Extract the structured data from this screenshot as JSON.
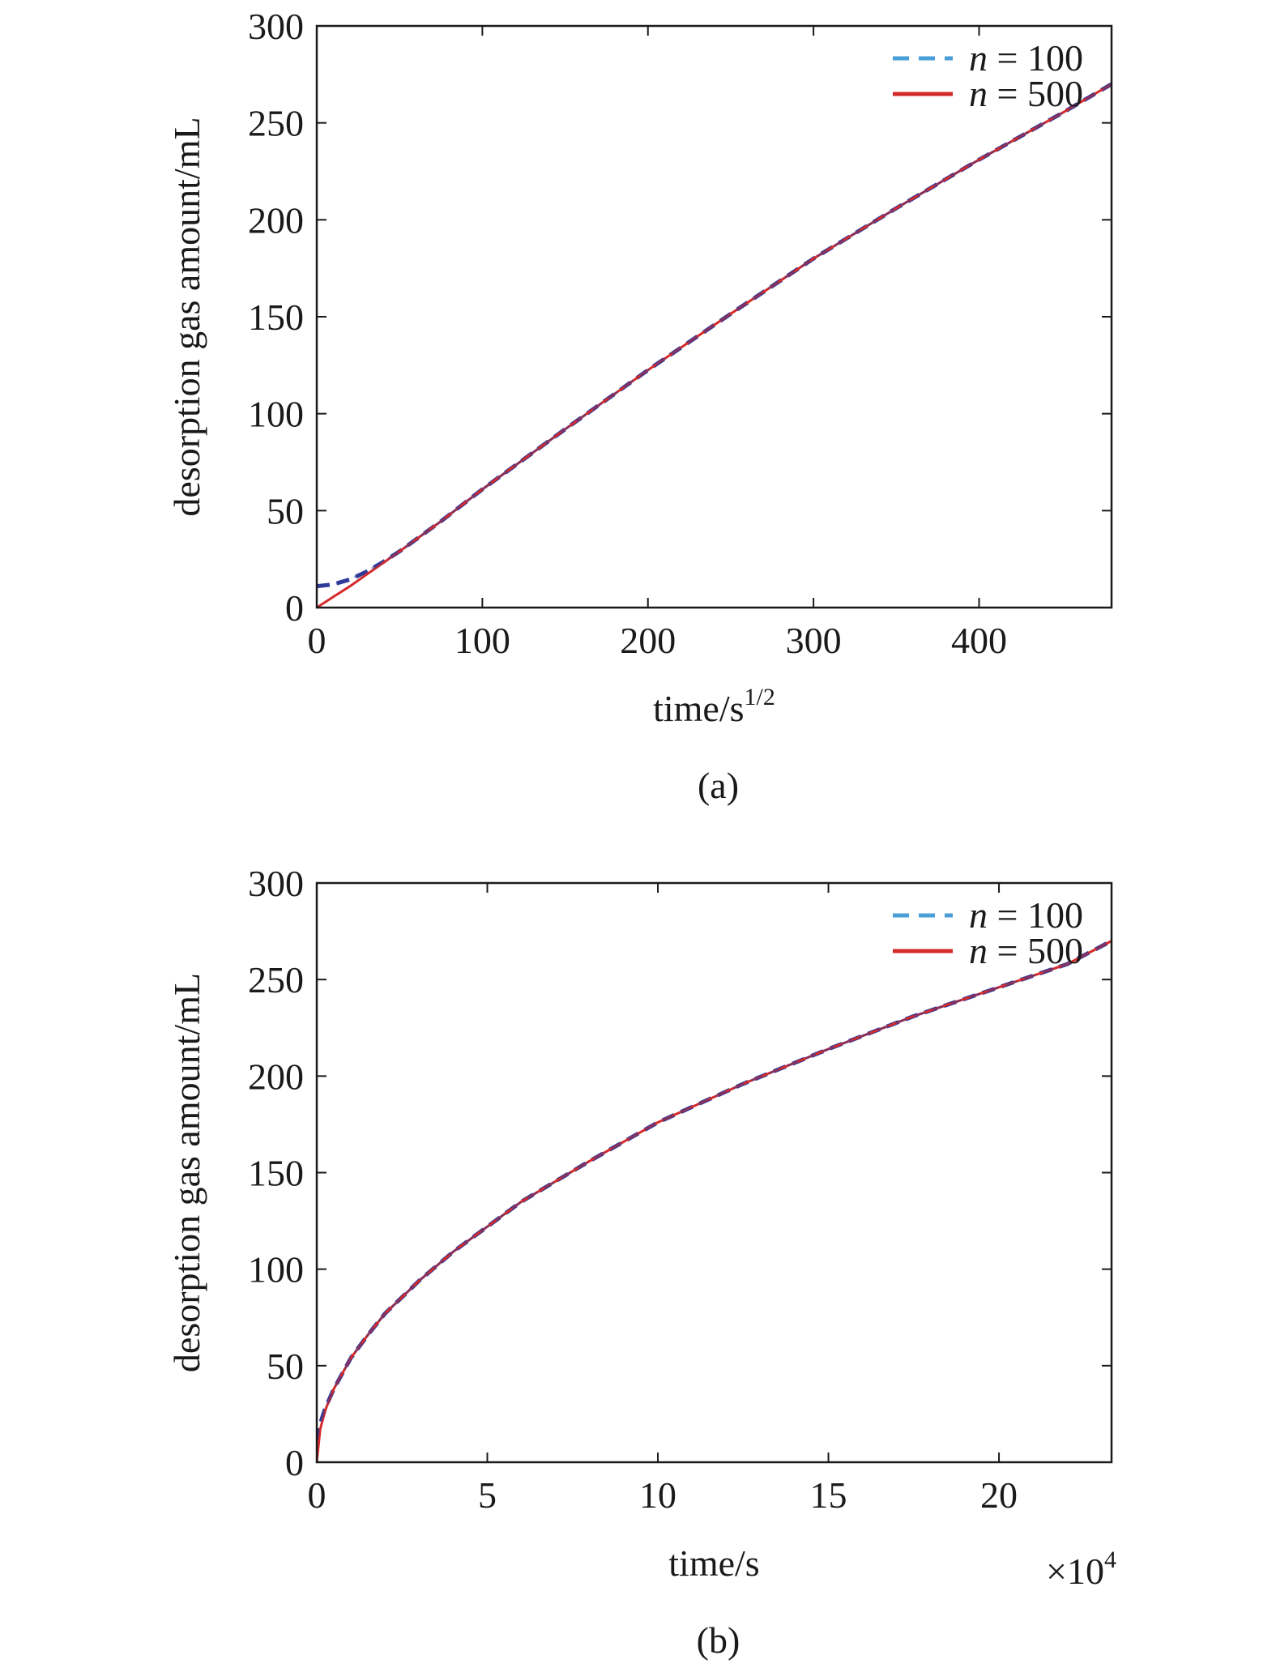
{
  "colors": {
    "n100": "#4a9fd8",
    "n100_overlay": "#2f3a9a",
    "n500": "#d42a2a",
    "axis": "#1a1a1a"
  },
  "chart_data": [
    {
      "type": "line",
      "panel_label": "(a)",
      "xlabel": "time/s",
      "xlabel_sup": "1/2",
      "ylabel": "desorption gas amount/mL",
      "xlim": [
        0,
        480
      ],
      "ylim": [
        0,
        300
      ],
      "xticks": [
        0,
        100,
        200,
        300,
        400
      ],
      "xtick_labels": [
        "0",
        "100",
        "200",
        "300",
        "400"
      ],
      "yticks": [
        0,
        50,
        100,
        150,
        200,
        250,
        300
      ],
      "ytick_labels": [
        "0",
        "50",
        "100",
        "150",
        "200",
        "250",
        "300"
      ],
      "x_multiplier": "",
      "grid": false,
      "legend_position": "top-right",
      "series": [
        {
          "name": "n = 100",
          "legend_var": "n",
          "legend_val": "100",
          "style": "dashed",
          "x": [
            0,
            10,
            20,
            30,
            40,
            50,
            75,
            100,
            150,
            200,
            250,
            300,
            350,
            400,
            450,
            480
          ],
          "y": [
            11,
            12,
            14.5,
            18.5,
            23.5,
            29,
            44.5,
            61,
            92,
            122.5,
            151.5,
            180,
            206,
            231,
            255,
            270
          ]
        },
        {
          "name": "n = 500",
          "legend_var": "n",
          "legend_val": "500",
          "style": "solid",
          "x": [
            0,
            10,
            20,
            30,
            40,
            50,
            75,
            100,
            150,
            200,
            250,
            300,
            350,
            400,
            450,
            480
          ],
          "y": [
            0,
            5.5,
            11,
            17,
            23,
            29,
            44.5,
            61,
            92,
            122.5,
            151.5,
            180,
            206,
            231,
            255,
            270
          ]
        }
      ]
    },
    {
      "type": "line",
      "panel_label": "(b)",
      "xlabel": "time/s",
      "xlabel_sup": "",
      "ylabel": "desorption gas amount/mL",
      "xlim": [
        0,
        23.3
      ],
      "ylim": [
        0,
        300
      ],
      "xticks": [
        0,
        5,
        10,
        15,
        20
      ],
      "xtick_labels": [
        "0",
        "5",
        "10",
        "15",
        "20"
      ],
      "yticks": [
        0,
        50,
        100,
        150,
        200,
        250,
        300
      ],
      "ytick_labels": [
        "0",
        "50",
        "100",
        "150",
        "200",
        "250",
        "300"
      ],
      "x_multiplier": "×10",
      "x_multiplier_exp": "4",
      "grid": false,
      "legend_position": "top-right",
      "series": [
        {
          "name": "n = 100",
          "legend_var": "n",
          "legend_val": "100",
          "style": "dashed",
          "x": [
            0,
            0.1,
            0.25,
            0.5,
            1,
            1.5,
            2,
            3,
            4,
            5,
            6,
            8,
            10,
            12.5,
            15,
            17.5,
            20,
            22,
            23.3
          ],
          "y": [
            11,
            20,
            28,
            38,
            54,
            66,
            77,
            94,
            109,
            122,
            135,
            156,
            176,
            196,
            214,
            231,
            246,
            258,
            270
          ]
        },
        {
          "name": "n = 500",
          "legend_var": "n",
          "legend_val": "500",
          "style": "solid",
          "x": [
            0,
            0.1,
            0.25,
            0.5,
            1,
            1.5,
            2,
            3,
            4,
            5,
            6,
            8,
            10,
            12.5,
            15,
            17.5,
            20,
            22,
            23.3
          ],
          "y": [
            0,
            17,
            27,
            38,
            54,
            66,
            77,
            94,
            109,
            122,
            135,
            156,
            176,
            196,
            214,
            231,
            246,
            258,
            270
          ]
        }
      ]
    }
  ]
}
